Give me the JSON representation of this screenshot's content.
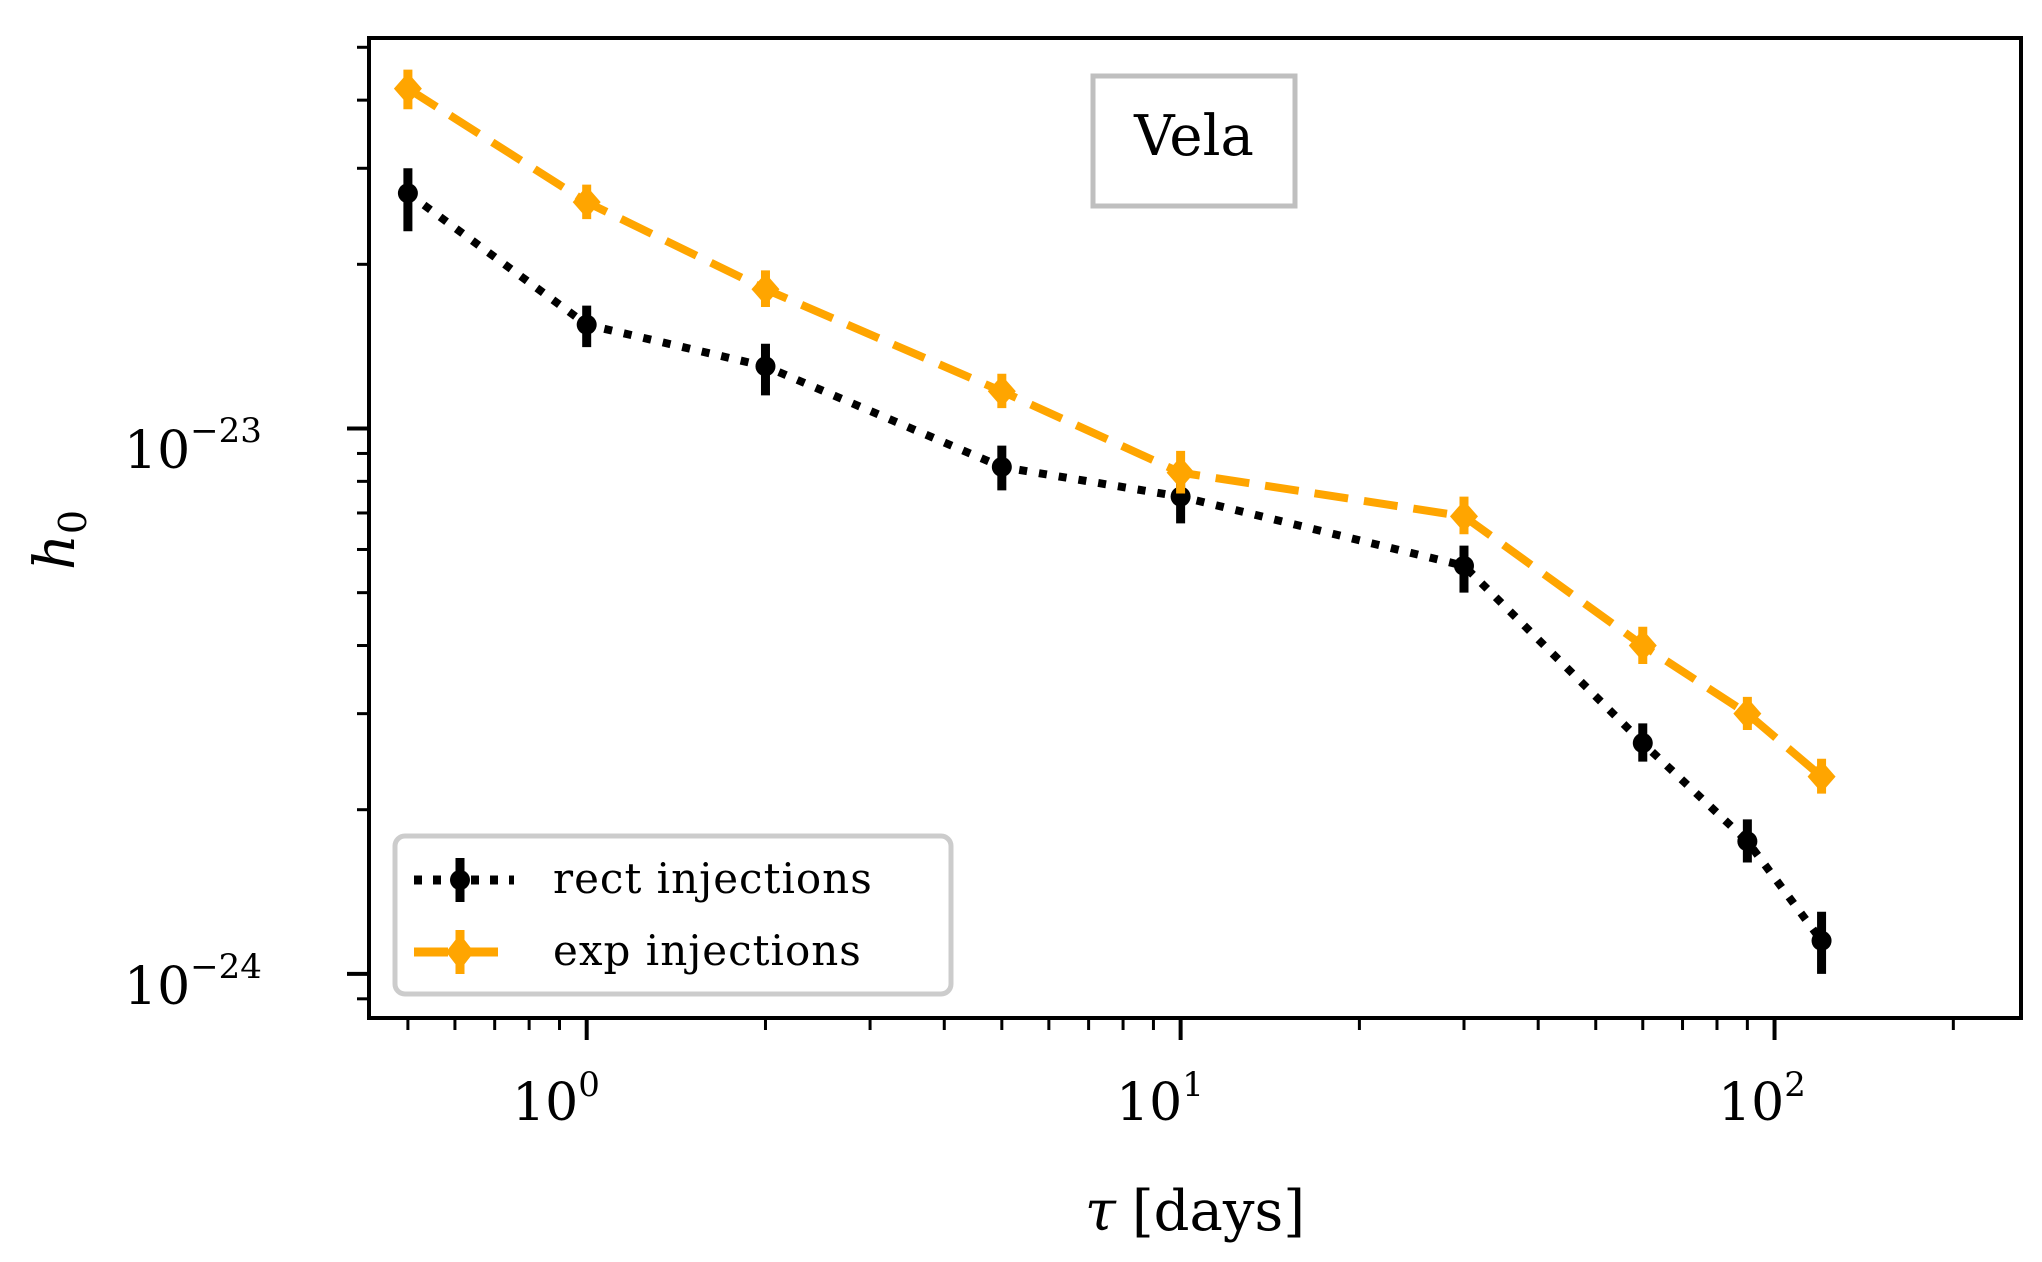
{
  "chart_data": {
    "type": "line",
    "title": "",
    "annotation": "Vela",
    "xlabel": {
      "symbol": "τ",
      "unit": "[days]"
    },
    "ylabel": {
      "base": "h",
      "sub": "0"
    },
    "xscale": "log",
    "yscale": "log",
    "xlim": [
      0.43,
      260
    ],
    "ylim": [
      8.3e-25,
      5.2e-23
    ],
    "x_ticks": [
      {
        "base": "10",
        "exp": "0"
      },
      {
        "base": "10",
        "exp": "1"
      },
      {
        "base": "10",
        "exp": "2"
      }
    ],
    "y_ticks": [
      {
        "base": "10",
        "exp": "−24"
      },
      {
        "base": "10",
        "exp": "−23"
      }
    ],
    "legend_position": "lower-left",
    "series": [
      {
        "name": "rect injections",
        "color": "#000000",
        "linestyle": "dotted",
        "marker": "circle",
        "x": [
          0.5,
          1,
          2,
          5,
          10,
          30,
          60,
          90,
          120
        ],
        "y": [
          2.7e-23,
          1.55e-23,
          1.3e-23,
          8.5e-24,
          7.5e-24,
          5.6e-24,
          2.65e-24,
          1.75e-24,
          1.15e-24
        ],
        "err_low": [
          2.3e-23,
          1.41e-23,
          1.15e-23,
          7.7e-24,
          6.7e-24,
          5e-24,
          2.45e-24,
          1.6e-24,
          1e-24
        ],
        "err_high": [
          3e-23,
          1.68e-23,
          1.43e-23,
          9.3e-24,
          8.2e-24,
          6.1e-24,
          2.88e-24,
          1.92e-24,
          1.3e-24
        ]
      },
      {
        "name": "exp injections",
        "color": "#ffa500",
        "linestyle": "dashed",
        "marker": "diamond",
        "x": [
          0.5,
          1,
          2,
          5,
          10,
          30,
          60,
          90,
          120
        ],
        "y": [
          4.2e-23,
          2.6e-23,
          1.8e-23,
          1.17e-23,
          8.3e-24,
          6.9e-24,
          4e-24,
          3e-24,
          2.3e-24
        ],
        "err_low": [
          3.85e-23,
          2.42e-23,
          1.67e-23,
          1.09e-23,
          7.6e-24,
          6.4e-24,
          3.7e-24,
          2.8e-24,
          2.14e-24
        ],
        "err_high": [
          4.55e-23,
          2.8e-23,
          1.95e-23,
          1.26e-23,
          9.1e-24,
          7.5e-24,
          4.33e-24,
          3.22e-24,
          2.48e-24
        ]
      }
    ]
  }
}
